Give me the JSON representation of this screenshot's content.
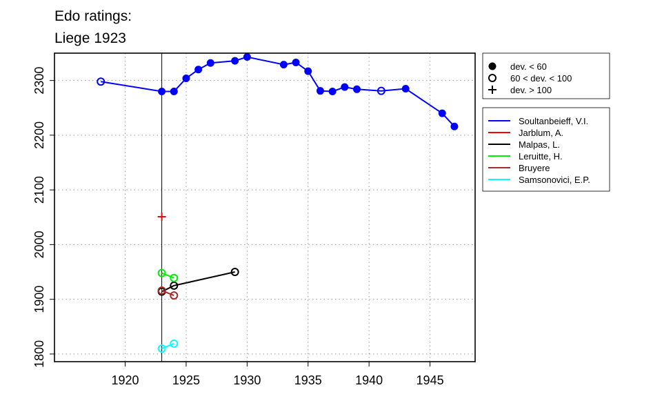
{
  "chart_data": {
    "type": "line",
    "title_lines": [
      "Edo ratings:",
      "Liege 1923"
    ],
    "xlabel": "",
    "ylabel": "",
    "xlim": [
      1914.2,
      1948.7
    ],
    "ylim": [
      1786,
      2350
    ],
    "x_ticks": [
      "1920",
      "1925",
      "1930",
      "1935",
      "1940",
      "1945"
    ],
    "y_ticks": [
      "1800",
      "1900",
      "2000",
      "2100",
      "2200",
      "2300"
    ],
    "grid": true,
    "reference_line_x": 1923,
    "markers_legend": [
      {
        "symbol": "filled-circle",
        "label": "dev. < 60"
      },
      {
        "symbol": "open-circle",
        "label": "60 < dev. < 100"
      },
      {
        "symbol": "plus",
        "label": "dev. > 100"
      }
    ],
    "series": [
      {
        "name": "Soultanbeieff, V.I.",
        "color": "#0000ff",
        "points": [
          {
            "x": 1918,
            "y": 2298,
            "m": "open"
          },
          {
            "x": 1923,
            "y": 2280,
            "m": "filled"
          },
          {
            "x": 1924,
            "y": 2280,
            "m": "filled"
          },
          {
            "x": 1925,
            "y": 2304,
            "m": "filled"
          },
          {
            "x": 1926,
            "y": 2320,
            "m": "filled"
          },
          {
            "x": 1927,
            "y": 2332,
            "m": "filled"
          },
          {
            "x": 1929,
            "y": 2336,
            "m": "filled"
          },
          {
            "x": 1930,
            "y": 2343,
            "m": "filled"
          },
          {
            "x": 1933,
            "y": 2329,
            "m": "filled"
          },
          {
            "x": 1934,
            "y": 2333,
            "m": "filled"
          },
          {
            "x": 1935,
            "y": 2317,
            "m": "filled"
          },
          {
            "x": 1936,
            "y": 2281,
            "m": "filled"
          },
          {
            "x": 1937,
            "y": 2280,
            "m": "filled"
          },
          {
            "x": 1938,
            "y": 2288,
            "m": "filled"
          },
          {
            "x": 1939,
            "y": 2284,
            "m": "filled"
          },
          {
            "x": 1941,
            "y": 2281,
            "m": "open"
          },
          {
            "x": 1943,
            "y": 2285,
            "m": "filled"
          },
          {
            "x": 1946,
            "y": 2240,
            "m": "filled"
          },
          {
            "x": 1947,
            "y": 2216,
            "m": "filled"
          }
        ]
      },
      {
        "name": "Jarblum, A.",
        "color": "#ff0000",
        "points": [
          {
            "x": 1923,
            "y": 2051,
            "m": "plus"
          }
        ]
      },
      {
        "name": "Malpas, L.",
        "color": "#000000",
        "points": [
          {
            "x": 1923,
            "y": 1914,
            "m": "open"
          },
          {
            "x": 1924,
            "y": 1925,
            "m": "open"
          },
          {
            "x": 1929,
            "y": 1950,
            "m": "open"
          }
        ]
      },
      {
        "name": "Leruitte, H.",
        "color": "#00ee00",
        "points": [
          {
            "x": 1923,
            "y": 1948,
            "m": "open"
          },
          {
            "x": 1924,
            "y": 1939,
            "m": "open"
          }
        ]
      },
      {
        "name": "Bruyere",
        "color": "#a52a2a",
        "points": [
          {
            "x": 1923,
            "y": 1916,
            "m": "open"
          },
          {
            "x": 1924,
            "y": 1907,
            "m": "open"
          }
        ]
      },
      {
        "name": "Samsonovici, E.P.",
        "color": "#00ffff",
        "points": [
          {
            "x": 1923,
            "y": 1810,
            "m": "open"
          },
          {
            "x": 1924,
            "y": 1819,
            "m": "open"
          }
        ]
      }
    ]
  }
}
